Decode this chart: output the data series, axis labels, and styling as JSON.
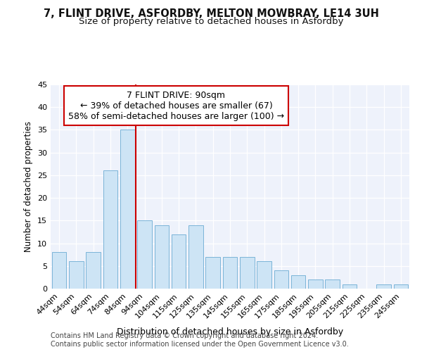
{
  "title1": "7, FLINT DRIVE, ASFORDBY, MELTON MOWBRAY, LE14 3UH",
  "title2": "Size of property relative to detached houses in Asfordby",
  "xlabel": "Distribution of detached houses by size in Asfordby",
  "ylabel": "Number of detached properties",
  "categories": [
    "44sqm",
    "54sqm",
    "64sqm",
    "74sqm",
    "84sqm",
    "94sqm",
    "104sqm",
    "115sqm",
    "125sqm",
    "135sqm",
    "145sqm",
    "155sqm",
    "165sqm",
    "175sqm",
    "185sqm",
    "195sqm",
    "205sqm",
    "215sqm",
    "225sqm",
    "235sqm",
    "245sqm"
  ],
  "values": [
    8,
    6,
    8,
    26,
    35,
    15,
    14,
    12,
    14,
    7,
    7,
    7,
    6,
    4,
    3,
    2,
    2,
    1,
    0,
    1,
    1
  ],
  "bar_color": "#cde4f5",
  "bar_edge_color": "#7ab4d8",
  "vline_color": "#cc0000",
  "annotation_line1": "7 FLINT DRIVE: 90sqm",
  "annotation_line2": "← 39% of detached houses are smaller (67)",
  "annotation_line3": "58% of semi-detached houses are larger (100) →",
  "annotation_box_color": "#ffffff",
  "annotation_box_edge_color": "#cc0000",
  "ylim": [
    0,
    45
  ],
  "yticks": [
    0,
    5,
    10,
    15,
    20,
    25,
    30,
    35,
    40,
    45
  ],
  "footer1": "Contains HM Land Registry data © Crown copyright and database right 2024.",
  "footer2": "Contains public sector information licensed under the Open Government Licence v3.0.",
  "bg_color": "#ffffff",
  "plot_bg_color": "#eef2fb",
  "grid_color": "#ffffff",
  "title1_fontsize": 10.5,
  "title2_fontsize": 9.5,
  "xlabel_fontsize": 9,
  "ylabel_fontsize": 8.5,
  "tick_fontsize": 8,
  "annotation_fontsize": 9,
  "footer_fontsize": 7
}
